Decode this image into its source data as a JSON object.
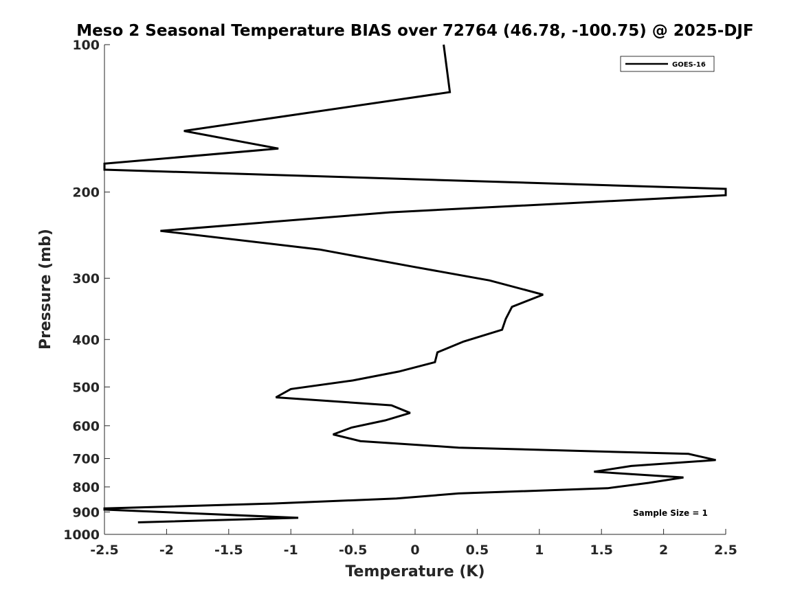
{
  "chart_data": {
    "type": "line",
    "title": "Meso 2 Seasonal Temperature BIAS over 72764 (46.78, -100.75) @ 2025-DJF",
    "xlabel": "Temperature (K)",
    "ylabel": "Pressure (mb)",
    "xlim": [
      -2.5,
      2.5
    ],
    "ylim": [
      100,
      1000
    ],
    "y_scale": "log",
    "y_reversed": true,
    "x_ticks": [
      -2.5,
      -2,
      -1.5,
      -1,
      -0.5,
      0,
      0.5,
      1,
      1.5,
      2,
      2.5
    ],
    "x_tick_labels": [
      "-2.5",
      "-2",
      "-1.5",
      "-1",
      "-0.5",
      "0",
      "0.5",
      "1",
      "1.5",
      "2",
      "2.5"
    ],
    "y_ticks": [
      100,
      200,
      300,
      400,
      500,
      600,
      700,
      800,
      900,
      1000
    ],
    "y_tick_labels": [
      "100",
      "200",
      "300",
      "400",
      "500",
      "600",
      "700",
      "800",
      "900",
      "1000"
    ],
    "grid": false,
    "legend_position": "top-right",
    "annotation": "Sample Size = 1",
    "series": [
      {
        "name": "GOES-16",
        "color": "#000000",
        "points": [
          {
            "t": 0.23,
            "p": 100
          },
          {
            "t": 0.28,
            "p": 125
          },
          {
            "t": -1.86,
            "p": 150
          },
          {
            "t": -1.1,
            "p": 163
          },
          {
            "t": -2.5,
            "p": 175
          },
          {
            "t": -2.5,
            "p": 180
          },
          {
            "t": 2.5,
            "p": 197
          },
          {
            "t": 2.5,
            "p": 203
          },
          {
            "t": -0.2,
            "p": 220
          },
          {
            "t": -2.05,
            "p": 240
          },
          {
            "t": -0.77,
            "p": 262
          },
          {
            "t": -0.02,
            "p": 284
          },
          {
            "t": 0.6,
            "p": 303
          },
          {
            "t": 1.03,
            "p": 324
          },
          {
            "t": 0.78,
            "p": 343
          },
          {
            "t": 0.73,
            "p": 363
          },
          {
            "t": 0.7,
            "p": 382
          },
          {
            "t": 0.39,
            "p": 404
          },
          {
            "t": 0.18,
            "p": 425
          },
          {
            "t": 0.16,
            "p": 445
          },
          {
            "t": -0.13,
            "p": 465
          },
          {
            "t": -0.5,
            "p": 485
          },
          {
            "t": -1.0,
            "p": 505
          },
          {
            "t": -1.12,
            "p": 525
          },
          {
            "t": -0.19,
            "p": 545
          },
          {
            "t": -0.04,
            "p": 565
          },
          {
            "t": -0.24,
            "p": 585
          },
          {
            "t": -0.51,
            "p": 605
          },
          {
            "t": -0.66,
            "p": 625
          },
          {
            "t": -0.44,
            "p": 645
          },
          {
            "t": 0.35,
            "p": 665
          },
          {
            "t": 2.2,
            "p": 685
          },
          {
            "t": 2.42,
            "p": 705
          },
          {
            "t": 1.74,
            "p": 725
          },
          {
            "t": 1.44,
            "p": 745
          },
          {
            "t": 2.16,
            "p": 765
          },
          {
            "t": 1.88,
            "p": 785
          },
          {
            "t": 1.55,
            "p": 805
          },
          {
            "t": 0.35,
            "p": 825
          },
          {
            "t": -0.15,
            "p": 845
          },
          {
            "t": -1.15,
            "p": 865
          },
          {
            "t": -2.5,
            "p": 885
          },
          {
            "t": -2.5,
            "p": 890
          },
          {
            "t": -0.94,
            "p": 925
          },
          {
            "t": -2.23,
            "p": 945
          }
        ]
      }
    ]
  }
}
